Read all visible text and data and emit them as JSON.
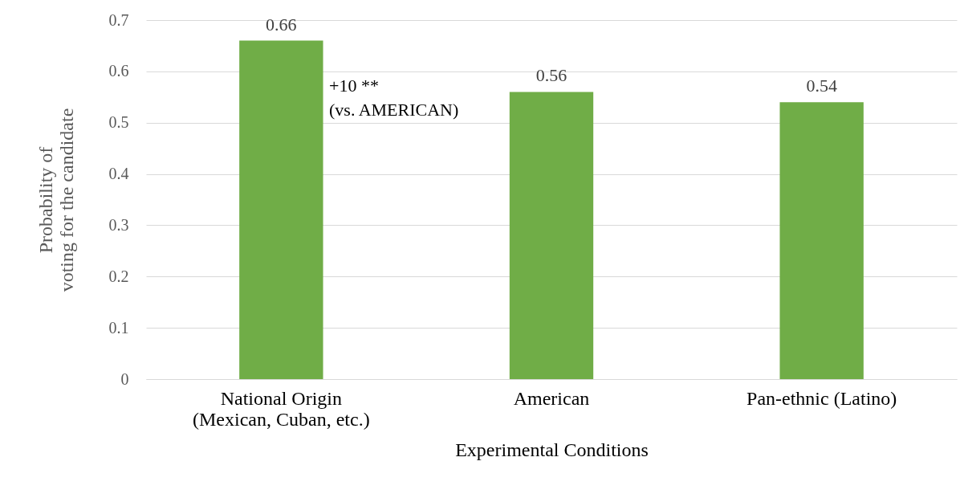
{
  "chart_data": {
    "type": "bar",
    "xlabel": "Experimental Conditions",
    "ylabel": "Probability of\nvoting for the candidate",
    "categories": [
      "National Origin\n(Mexican, Cuban, etc.)",
      "American",
      "Pan-ethnic (Latino)"
    ],
    "values": [
      0.66,
      0.56,
      0.54
    ],
    "color": "#70ad47",
    "data_labels": true,
    "ylim": [
      0,
      0.7
    ],
    "yticks": [
      0,
      0.1,
      0.2,
      0.3,
      0.4,
      0.5,
      0.6,
      0.7
    ],
    "grid": "y",
    "annotations": [
      "+10 **\n(vs. AMERICAN)"
    ]
  }
}
